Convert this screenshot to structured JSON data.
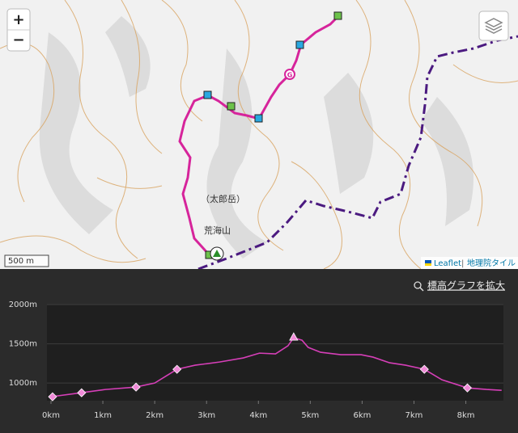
{
  "map": {
    "zoom_in": "+",
    "zoom_out": "−",
    "scale": "500 m",
    "attribution_leaflet": "Leaflet",
    "attribution_separator": "|",
    "attribution_tiles": "地理院タイル",
    "goal_marker": "G",
    "label_taro": "（太郎岳）",
    "label_arakai": "荒海山"
  },
  "chart_data": {
    "type": "line",
    "expand_link": "標高グラフを拡大",
    "xlim": [
      0,
      8.85
    ],
    "ylim": [
      775,
      2000
    ],
    "xticks": [
      {
        "value": 0,
        "label": "0km"
      },
      {
        "value": 1,
        "label": "1km"
      },
      {
        "value": 2,
        "label": "2km"
      },
      {
        "value": 3,
        "label": "3km"
      },
      {
        "value": 4,
        "label": "4km"
      },
      {
        "value": 5,
        "label": "5km"
      },
      {
        "value": 6,
        "label": "6km"
      },
      {
        "value": 7,
        "label": "7km"
      },
      {
        "value": 8,
        "label": "8km"
      }
    ],
    "yticks": [
      {
        "value": 1000,
        "label": "1000m"
      },
      {
        "value": 1500,
        "label": "1500m"
      },
      {
        "value": 2000,
        "label": "2000m"
      }
    ],
    "grid": true,
    "series": [
      {
        "color": "#d63fb8",
        "marker": "none",
        "x": [
          0,
          0.58,
          1.05,
          1.63,
          2.0,
          2.43,
          2.78,
          3.25,
          3.71,
          4.02,
          4.33,
          4.57,
          4.68,
          4.84,
          4.96,
          5.2,
          5.59,
          5.98,
          6.21,
          6.53,
          6.84,
          7.2,
          7.54,
          8.03,
          8.4,
          8.69
        ],
        "values": [
          825,
          876,
          918,
          948,
          1000,
          1175,
          1227,
          1268,
          1320,
          1381,
          1371,
          1474,
          1577,
          1546,
          1454,
          1392,
          1361,
          1361,
          1330,
          1258,
          1227,
          1175,
          1041,
          938,
          918,
          907
        ]
      },
      {
        "color": "#f08ad8",
        "marker": "diamond",
        "x": [
          0.03,
          0.59,
          1.64,
          2.43,
          7.2,
          8.03
        ],
        "values": [
          825,
          876,
          948,
          1175,
          1175,
          938
        ]
      },
      {
        "color": "#f08ad8",
        "marker": "triangle",
        "x": [
          4.68
        ],
        "values": [
          1577
        ]
      }
    ]
  }
}
